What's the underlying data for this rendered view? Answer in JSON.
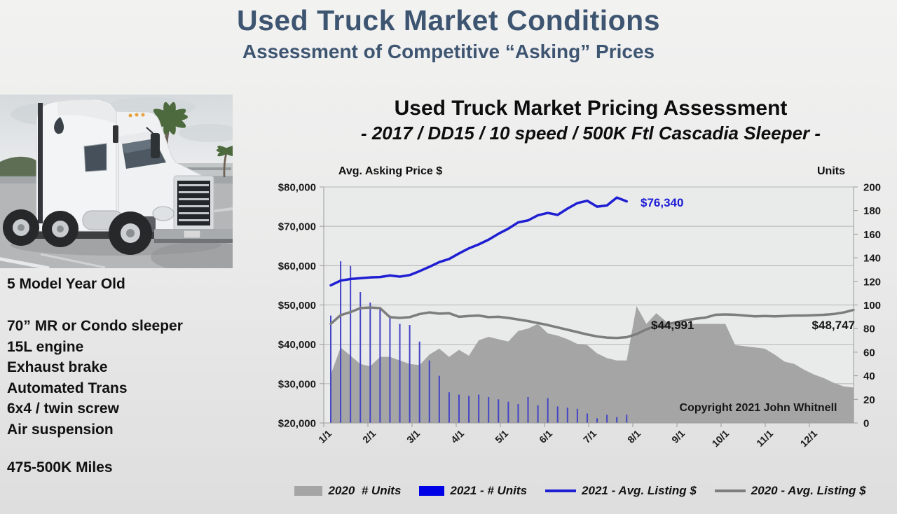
{
  "slide": {
    "title": "Used Truck Market Conditions",
    "subtitle": "Assessment of Competitive “Asking” Prices"
  },
  "truck_photo": {
    "alt": "White Freightliner Cascadia sleeper tractor parked in a lot with palm trees under an overcast sky"
  },
  "specs": {
    "age": "5 Model Year Old",
    "features": [
      "70” MR or Condo sleeper",
      "15L engine",
      "Exhaust brake",
      "Automated Trans",
      "6x4 / twin screw",
      "Air suspension"
    ],
    "miles": "475-500K Miles"
  },
  "chart_data": {
    "type": "combo",
    "title": "Used Truck Market Pricing Assessment",
    "subtitle": "- 2017 / DD15 / 10 speed / 500K Ftl Cascadia Sleeper -",
    "x_axis": {
      "unit": "weekly",
      "tick_labels": [
        "1/1",
        "2/1",
        "3/1",
        "4/1",
        "5/1",
        "6/1",
        "7/1",
        "8/1",
        "9/1",
        "10/1",
        "11/1",
        "12/1"
      ]
    },
    "left_axis": {
      "title": "Avg. Asking Price $",
      "min": 20000,
      "max": 80000,
      "tick_step": 10000,
      "tick_labels": [
        "$20,000",
        "$30,000",
        "$40,000",
        "$50,000",
        "$60,000",
        "$70,000",
        "$80,000"
      ]
    },
    "right_axis": {
      "title": "Units",
      "min": 0,
      "max": 200,
      "tick_step": 20,
      "tick_labels": [
        "0",
        "20",
        "40",
        "60",
        "80",
        "100",
        "120",
        "140",
        "160",
        "180",
        "200"
      ]
    },
    "series": [
      {
        "name": "2020  # Units",
        "type": "area",
        "axis": "right",
        "color": "#a5a5a5",
        "values": [
          41,
          64,
          57,
          50,
          48,
          56,
          56,
          53,
          50,
          49,
          58,
          63,
          56,
          62,
          57,
          70,
          73,
          71,
          69,
          78,
          80,
          84,
          76,
          74,
          71,
          67,
          66,
          59,
          55,
          53,
          53,
          99,
          84,
          93,
          86,
          85,
          84,
          84,
          84,
          84,
          84,
          66,
          65,
          64,
          63,
          58,
          52,
          50,
          45,
          41,
          38,
          34,
          31,
          30
        ]
      },
      {
        "name": "2021 - # Units",
        "type": "bar",
        "axis": "right",
        "color": "#4444c6",
        "values": [
          91,
          137,
          133,
          111,
          102,
          97,
          91,
          84,
          83,
          69,
          53,
          40,
          26,
          24,
          23,
          24,
          22,
          20,
          18,
          16,
          22,
          15,
          21,
          14,
          13,
          12,
          8,
          4,
          7,
          5,
          7
        ]
      },
      {
        "name": "2021 - Avg. Listing $",
        "type": "line",
        "axis": "left",
        "color": "#1e1ed2",
        "values": [
          55000,
          56200,
          56600,
          56800,
          57000,
          57100,
          57500,
          57200,
          57600,
          58600,
          59700,
          60900,
          61700,
          63100,
          64400,
          65400,
          66600,
          68100,
          69400,
          71000,
          71500,
          72800,
          73400,
          72900,
          74500,
          75900,
          76500,
          75000,
          75300,
          77300,
          76340
        ]
      },
      {
        "name": "2020 - Avg. Listing $",
        "type": "line",
        "axis": "left",
        "color": "#7d7d7d",
        "values": [
          45200,
          47400,
          48200,
          49200,
          49350,
          49200,
          46900,
          46700,
          46900,
          47700,
          48100,
          47800,
          47900,
          47000,
          47200,
          47300,
          46900,
          47000,
          46700,
          46300,
          45900,
          45400,
          44900,
          44300,
          43700,
          43100,
          42500,
          42000,
          41700,
          41600,
          41800,
          42600,
          43800,
          44700,
          44991,
          45600,
          46100,
          46500,
          46800,
          47500,
          47600,
          47500,
          47300,
          47100,
          47200,
          47100,
          47200,
          47300,
          47300,
          47400,
          47500,
          47700,
          48100,
          48747
        ]
      }
    ],
    "annotations": [
      {
        "text": "$76,340",
        "series": "2021 - Avg. Listing $",
        "color": "#1c1cd6"
      },
      {
        "text": "$44,991",
        "series": "2020 - Avg. Listing $",
        "color": "#161616"
      },
      {
        "text": "$48,747",
        "series": "2020 - Avg. Listing $",
        "color": "#161616"
      },
      {
        "text": "Copyright 2021 John Whitnell",
        "color": "#161616"
      }
    ],
    "legend": [
      {
        "label": "2020  # Units",
        "swatch": "area",
        "color": "#a5a5a5"
      },
      {
        "label": "2021 - # Units",
        "swatch": "bar",
        "color": "#0000e6"
      },
      {
        "label": "2021 - Avg. Listing $",
        "swatch": "line",
        "color": "#1e1ed2"
      },
      {
        "label": "2020 - Avg. Listing $",
        "swatch": "line",
        "color": "#7d7d7d"
      }
    ],
    "grid": "horizontal",
    "legend_position": "bottom"
  }
}
